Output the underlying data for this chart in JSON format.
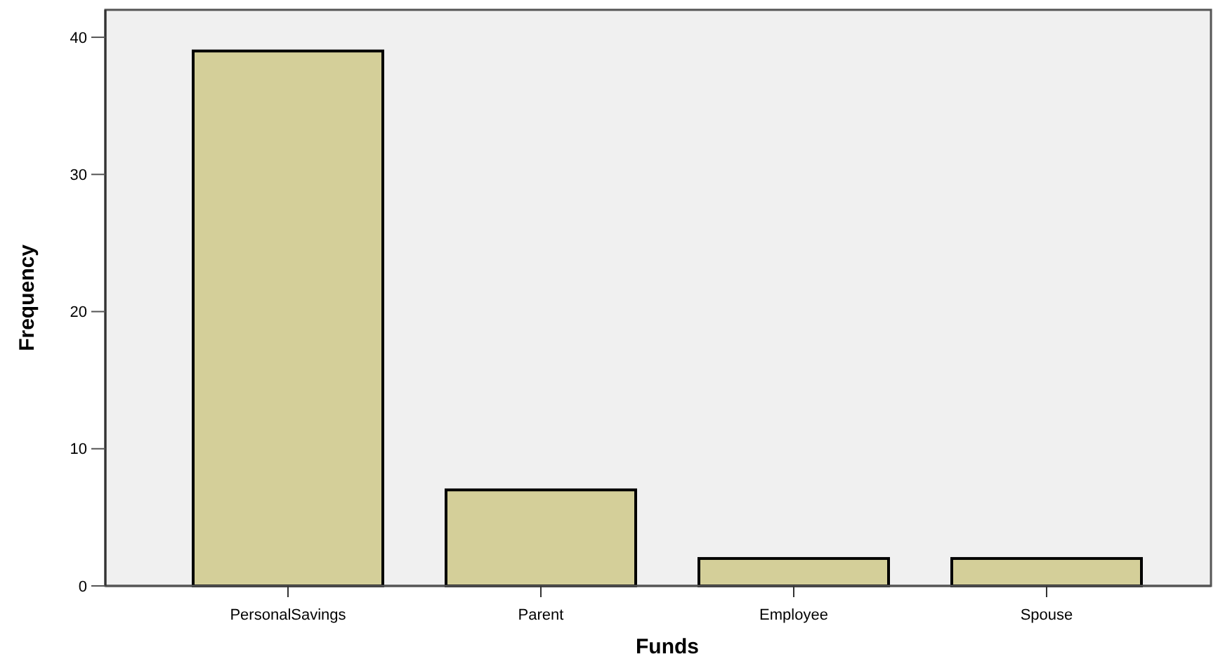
{
  "chart_data": {
    "type": "bar",
    "xlabel": "Funds",
    "ylabel": "Frequency",
    "categories": [
      "PersonalSavings",
      "Parent",
      "Employee",
      "Spouse"
    ],
    "values": [
      39,
      7,
      2,
      2
    ],
    "color": "#d4cf99",
    "ylim": [
      0,
      42
    ],
    "yticks": [
      0,
      10,
      20,
      30,
      40
    ],
    "grid": false
  }
}
